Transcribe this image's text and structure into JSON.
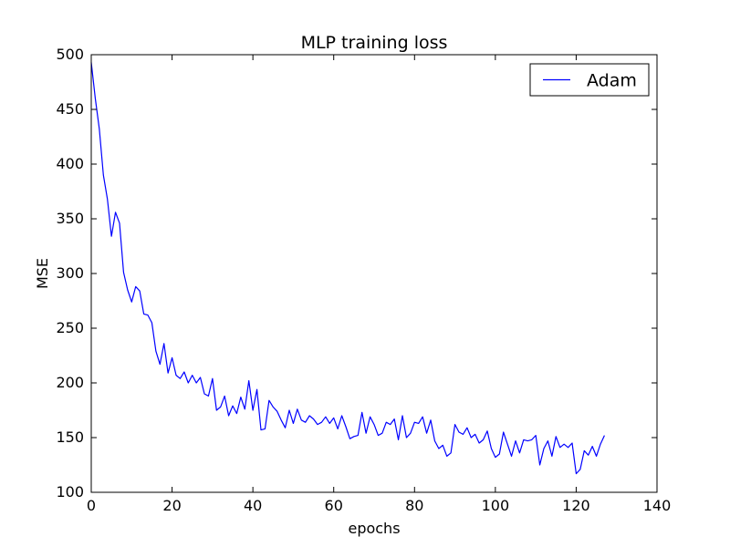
{
  "chart_data": {
    "type": "line",
    "title": "MLP training loss",
    "xlabel": "epochs",
    "ylabel": "MSE",
    "xlim": [
      0,
      140
    ],
    "ylim": [
      100,
      500
    ],
    "xticks": [
      "0",
      "20",
      "40",
      "60",
      "80",
      "100",
      "120",
      "140"
    ],
    "yticks": [
      "100",
      "150",
      "200",
      "250",
      "300",
      "350",
      "400",
      "450",
      "500"
    ],
    "grid": false,
    "legend_position": "top-right",
    "series": [
      {
        "name": "Adam",
        "color": "#0000ff",
        "x": [
          0,
          1,
          2,
          3,
          4,
          5,
          6,
          7,
          8,
          9,
          10,
          11,
          12,
          13,
          14,
          15,
          16,
          17,
          18,
          19,
          20,
          21,
          22,
          23,
          24,
          25,
          26,
          27,
          28,
          29,
          30,
          31,
          32,
          33,
          34,
          35,
          36,
          37,
          38,
          39,
          40,
          41,
          42,
          43,
          44,
          45,
          46,
          47,
          48,
          49,
          50,
          51,
          52,
          53,
          54,
          55,
          56,
          57,
          58,
          59,
          60,
          61,
          62,
          63,
          64,
          65,
          66,
          67,
          68,
          69,
          70,
          71,
          72,
          73,
          74,
          75,
          76,
          77,
          78,
          79,
          80,
          81,
          82,
          83,
          84,
          85,
          86,
          87,
          88,
          89,
          90,
          91,
          92,
          93,
          94,
          95,
          96,
          97,
          98,
          99,
          100,
          101,
          102,
          103,
          104,
          105,
          106,
          107,
          108,
          109,
          110,
          111,
          112,
          113,
          114,
          115,
          116,
          117,
          118,
          119,
          120,
          121,
          122,
          123,
          124,
          125,
          126,
          127
        ],
        "values": [
          493,
          460,
          432,
          390,
          368,
          334,
          356,
          346,
          301,
          285,
          274,
          288,
          284,
          263,
          262,
          255,
          229,
          217,
          236,
          209,
          223,
          207,
          204,
          210,
          200,
          207,
          200,
          205,
          190,
          188,
          204,
          175,
          178,
          188,
          170,
          179,
          172,
          187,
          176,
          202,
          175,
          194,
          157,
          158,
          184,
          178,
          174,
          166,
          159,
          175,
          163,
          176,
          166,
          164,
          170,
          167,
          162,
          164,
          169,
          163,
          168,
          158,
          170,
          160,
          149,
          151,
          152,
          173,
          154,
          169,
          162,
          152,
          154,
          164,
          162,
          167,
          148,
          170,
          150,
          154,
          164,
          163,
          169,
          154,
          166,
          147,
          140,
          143,
          133,
          136,
          162,
          155,
          153,
          159,
          150,
          153,
          145,
          148,
          156,
          140,
          132,
          135,
          155,
          144,
          133,
          147,
          136,
          148,
          147,
          148,
          152,
          125,
          140,
          147,
          133,
          151,
          141,
          144,
          141,
          145,
          117,
          121,
          138,
          134,
          142,
          133,
          144,
          152
        ]
      }
    ]
  }
}
